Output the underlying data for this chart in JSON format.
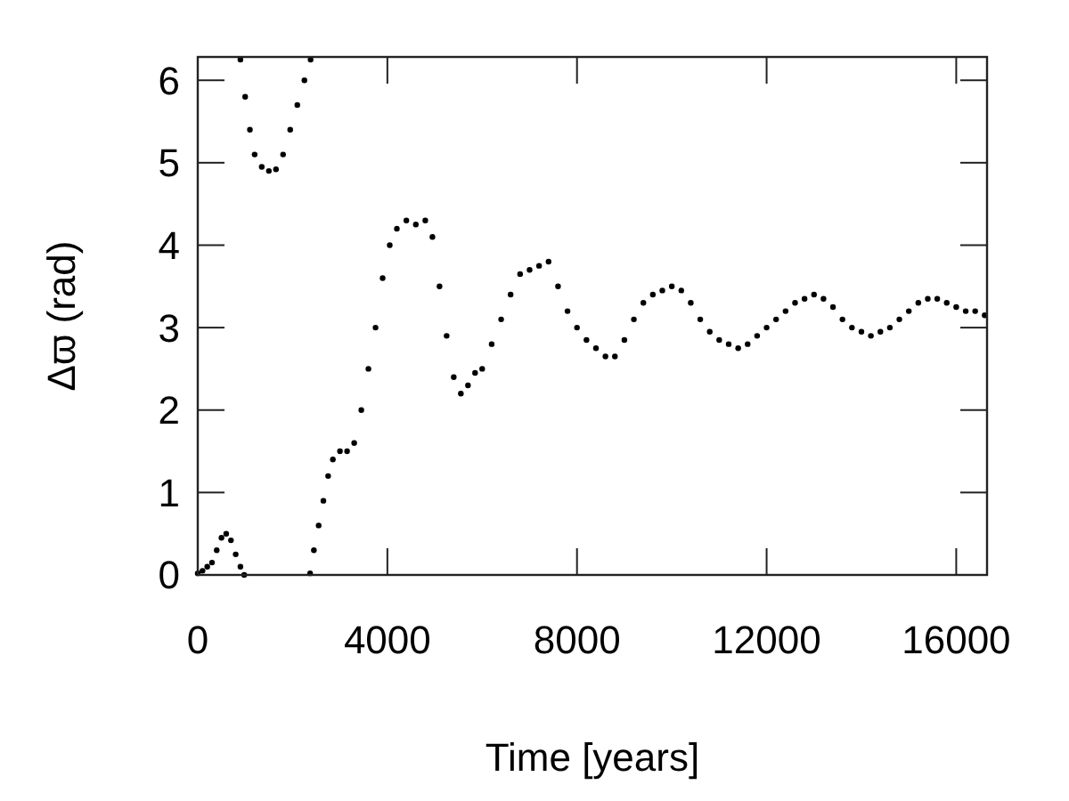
{
  "chart_data": {
    "type": "scatter",
    "xlabel": "Time [years]",
    "ylabel": "Δϖ (rad)",
    "xlim": [
      0,
      16650
    ],
    "ylim": [
      0,
      6.283
    ],
    "xticks": [
      0,
      4000,
      8000,
      12000,
      16000
    ],
    "yticks": [
      0,
      1,
      2,
      3,
      4,
      5,
      6
    ],
    "grid": false,
    "marker": "circle",
    "series": [
      {
        "color": "#000000",
        "x": [
          0,
          100,
          200,
          300,
          400,
          500,
          600,
          700,
          800,
          900,
          980,
          900,
          1000,
          1100,
          1200,
          1350,
          1500,
          1650,
          1800,
          1950,
          2100,
          2250,
          2380,
          2370,
          2450,
          2550,
          2650,
          2750,
          2850,
          3000,
          3150,
          3300,
          3450,
          3600,
          3750,
          3900,
          4050,
          4200,
          4400,
          4600,
          4800,
          4950,
          5100,
          5250,
          5400,
          5550,
          5700,
          5850,
          6000,
          6200,
          6400,
          6600,
          6800,
          7000,
          7200,
          7400,
          7600,
          7800,
          8000,
          8200,
          8400,
          8600,
          8800,
          9000,
          9200,
          9400,
          9600,
          9800,
          10000,
          10200,
          10400,
          10600,
          10800,
          11000,
          11200,
          11400,
          11600,
          11800,
          12000,
          12200,
          12400,
          12600,
          12800,
          13000,
          13200,
          13400,
          13600,
          13800,
          14000,
          14200,
          14400,
          14600,
          14800,
          15000,
          15200,
          15400,
          15600,
          15800,
          16000,
          16200,
          16400,
          16600
        ],
        "values": [
          0.02,
          0.05,
          0.1,
          0.15,
          0.3,
          0.45,
          0.5,
          0.42,
          0.25,
          0.1,
          0.0,
          6.25,
          5.8,
          5.4,
          5.1,
          4.95,
          4.9,
          4.92,
          5.1,
          5.4,
          5.7,
          6.0,
          6.25,
          0.02,
          0.3,
          0.6,
          0.9,
          1.2,
          1.4,
          1.5,
          1.5,
          1.6,
          2.0,
          2.5,
          3.0,
          3.6,
          4.0,
          4.2,
          4.3,
          4.25,
          4.3,
          4.1,
          3.5,
          2.9,
          2.4,
          2.2,
          2.3,
          2.45,
          2.5,
          2.8,
          3.1,
          3.4,
          3.65,
          3.7,
          3.75,
          3.8,
          3.5,
          3.2,
          3.0,
          2.85,
          2.75,
          2.65,
          2.65,
          2.85,
          3.1,
          3.3,
          3.4,
          3.45,
          3.5,
          3.45,
          3.3,
          3.1,
          2.95,
          2.85,
          2.8,
          2.75,
          2.8,
          2.9,
          3.0,
          3.1,
          3.2,
          3.3,
          3.35,
          3.4,
          3.35,
          3.25,
          3.1,
          3.0,
          2.95,
          2.9,
          2.95,
          3.0,
          3.1,
          3.2,
          3.3,
          3.35,
          3.35,
          3.3,
          3.25,
          3.2,
          3.2,
          3.15
        ]
      }
    ]
  }
}
